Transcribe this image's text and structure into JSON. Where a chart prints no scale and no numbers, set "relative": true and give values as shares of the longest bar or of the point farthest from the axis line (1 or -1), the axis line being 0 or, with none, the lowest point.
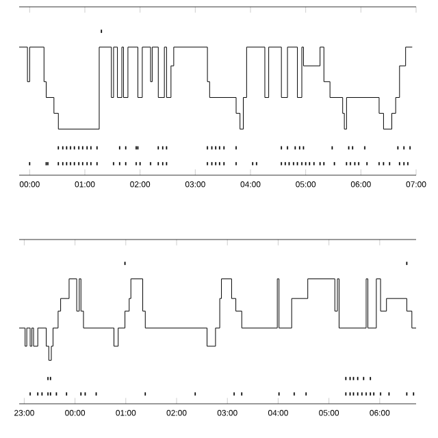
{
  "chart_data": [
    {
      "type": "step",
      "relative": true,
      "xlim": [
        -0.19,
        7.0
      ],
      "xticks": [
        {
          "value": 0,
          "label": "00:00"
        },
        {
          "value": 1,
          "label": "01:00"
        },
        {
          "value": 2,
          "label": "02:00"
        },
        {
          "value": 3,
          "label": "03:00"
        },
        {
          "value": 4,
          "label": "04:00"
        },
        {
          "value": 5,
          "label": "05:00"
        },
        {
          "value": 6,
          "label": "06:00"
        },
        {
          "value": 7,
          "label": "07:00"
        }
      ],
      "series": [
        {
          "color": "#000000",
          "x": [
            -0.19,
            -0.04,
            0,
            0.26,
            0.3,
            0.44,
            0.52,
            1.26,
            1.48,
            1.52,
            1.59,
            1.67,
            1.7,
            1.78,
            1.96,
            2.04,
            2.19,
            2.22,
            2.33,
            2.44,
            2.48,
            2.56,
            2.61,
            3.22,
            3.26,
            3.74,
            3.81,
            3.87,
            3.93,
            4.26,
            4.33,
            4.56,
            4.67,
            4.85,
            4.93,
            4.96,
            5.26,
            5.33,
            5.44,
            5.67,
            5.7,
            5.74,
            6.33,
            6.41,
            6.56,
            6.63,
            6.7,
            6.81,
            6.93
          ],
          "values": [
            0.89,
            0.65,
            0.89,
            0.65,
            0.54,
            0.43,
            0.32,
            0.89,
            0.54,
            0.89,
            0.54,
            0.89,
            0.54,
            0.89,
            0.54,
            0.89,
            0.65,
            0.89,
            0.54,
            0.89,
            0.54,
            0.76,
            0.89,
            0.65,
            0.54,
            0.43,
            0.32,
            0.54,
            0.89,
            0.54,
            0.89,
            0.54,
            0.89,
            0.54,
            0.89,
            0.76,
            0.89,
            0.65,
            0.54,
            0.43,
            0.32,
            0.54,
            0.43,
            0.32,
            0.43,
            0.54,
            0.76,
            0.89,
            0.89
          ]
        },
        {
          "type": "scatter",
          "color": "#000000",
          "x": [
            1.3
          ],
          "values": [
            1
          ]
        },
        {
          "type": "scatter",
          "color": "#000000",
          "x": [
            0.52,
            0.6,
            0.67,
            0.74,
            0.81,
            0.89,
            0.96,
            1.04,
            1.11,
            1.22,
            1.63,
            1.74,
            1.93,
            1.96,
            2.33,
            2.41,
            2.48,
            3.22,
            3.3,
            3.37,
            3.44,
            3.52,
            3.74,
            4.56,
            4.67,
            4.81,
            4.89,
            4.96,
            5.48,
            5.78,
            5.85,
            6.07,
            6.67,
            6.78,
            6.89
          ],
          "values": [
            0.19,
            0.19,
            0.19,
            0.19,
            0.19,
            0.19,
            0.19,
            0.19,
            0.19,
            0.19,
            0.19,
            0.19,
            0.19,
            0.19,
            0.19,
            0.19,
            0.19,
            0.19,
            0.19,
            0.19,
            0.19,
            0.19,
            0.19,
            0.19,
            0.19,
            0.19,
            0.19,
            0.19,
            0.19,
            0.19,
            0.19,
            0.19,
            0.19,
            0.19,
            0.19
          ]
        },
        {
          "type": "scatter",
          "color": "#000000",
          "x": [
            0,
            0.3,
            0.33,
            0.52,
            0.6,
            0.67,
            0.74,
            0.81,
            0.89,
            0.96,
            1.04,
            1.11,
            1.22,
            1.52,
            1.63,
            1.74,
            1.93,
            2.0,
            2.19,
            2.33,
            2.41,
            2.48,
            3.22,
            3.3,
            3.37,
            3.44,
            3.52,
            3.74,
            4.04,
            4.11,
            4.56,
            4.63,
            4.7,
            4.78,
            4.85,
            4.93,
            5.0,
            5.07,
            5.15,
            5.26,
            5.33,
            5.52,
            5.74,
            5.81,
            5.89,
            5.96,
            6.11,
            6.33,
            6.41,
            6.52,
            6.7,
            6.78,
            6.85
          ],
          "values": [
            0.08,
            0.08,
            0.08,
            0.08,
            0.08,
            0.08,
            0.08,
            0.08,
            0.08,
            0.08,
            0.08,
            0.08,
            0.08,
            0.08,
            0.08,
            0.08,
            0.08,
            0.08,
            0.08,
            0.08,
            0.08,
            0.08,
            0.08,
            0.08,
            0.08,
            0.08,
            0.08,
            0.08,
            0.08,
            0.08,
            0.08,
            0.08,
            0.08,
            0.08,
            0.08,
            0.08,
            0.08,
            0.08,
            0.08,
            0.08,
            0.08,
            0.08,
            0.08,
            0.08,
            0.08,
            0.08,
            0.08,
            0.08,
            0.08,
            0.08,
            0.08,
            0.08,
            0.08
          ]
        }
      ]
    },
    {
      "type": "step",
      "relative": true,
      "xlim": [
        "2000-01-01T22:54",
        "2000-01-02T06:43"
      ],
      "xticks": [
        {
          "value": "2000-01-01T23:00",
          "label": "23:00"
        },
        {
          "value": "2000-01-02T00:00",
          "label": "00:00"
        },
        {
          "value": "2000-01-02T01:00",
          "label": "01:00"
        },
        {
          "value": "2000-01-02T02:00",
          "label": "02:00"
        },
        {
          "value": "2000-01-02T03:00",
          "label": "03:00"
        },
        {
          "value": "2000-01-02T04:00",
          "label": "04:00"
        },
        {
          "value": "2000-01-02T05:00",
          "label": "05:00"
        },
        {
          "value": "2000-01-02T06:00",
          "label": "06:00"
        }
      ],
      "series": [
        {
          "color": "#000000",
          "x": [
            "2000-01-01T22:54",
            "2000-01-01T23:01",
            "2000-01-01T23:03",
            "2000-01-01T23:07",
            "2000-01-01T23:09",
            "2000-01-01T23:11",
            "2000-01-01T23:16",
            "2000-01-01T23:26",
            "2000-01-01T23:29",
            "2000-01-01T23:32",
            "2000-01-01T23:34",
            "2000-01-01T23:40",
            "2000-01-01T23:43",
            "2000-01-01T23:53",
            "2000-01-02T00:02",
            "2000-01-02T00:05",
            "2000-01-02T00:07",
            "2000-01-02T00:10",
            "2000-01-02T00:46",
            "2000-01-02T00:51",
            "2000-01-02T00:59",
            "2000-01-02T01:04",
            "2000-01-02T01:06",
            "2000-01-02T01:20",
            "2000-01-02T01:23",
            "2000-01-02T02:36",
            "2000-01-02T02:46",
            "2000-01-02T02:51",
            "2000-01-02T02:53",
            "2000-01-02T03:05",
            "2000-01-02T03:10",
            "2000-01-02T03:17",
            "2000-01-02T03:59",
            "2000-01-02T04:01",
            "2000-01-02T04:16",
            "2000-01-02T04:35",
            "2000-01-02T05:07",
            "2000-01-02T05:10",
            "2000-01-02T05:12",
            "2000-01-02T05:44",
            "2000-01-02T05:46",
            "2000-01-02T05:56",
            "2000-01-02T06:01",
            "2000-01-02T06:08",
            "2000-01-02T06:32",
            "2000-01-02T06:38",
            "2000-01-02T06:43"
          ],
          "values": [
            0.54,
            0.41,
            0.54,
            0.41,
            0.54,
            0.41,
            0.54,
            0.41,
            0.31,
            0.41,
            0.54,
            0.66,
            0.75,
            0.89,
            0.66,
            0.89,
            0.66,
            0.54,
            0.41,
            0.54,
            0.66,
            0.75,
            0.89,
            0.66,
            0.54,
            0.41,
            0.54,
            0.75,
            0.89,
            0.75,
            0.66,
            0.54,
            0.89,
            0.54,
            0.75,
            0.89,
            0.66,
            0.89,
            0.54,
            0.89,
            0.54,
            0.89,
            0.66,
            0.75,
            0.66,
            0.54,
            0.54
          ]
        },
        {
          "type": "scatter",
          "color": "#000000",
          "x": [
            "2000-01-02T00:59",
            "2000-01-02T06:32"
          ],
          "values": [
            1,
            1
          ]
        },
        {
          "type": "scatter",
          "color": "#000000",
          "x": [
            "2000-01-01T23:28",
            "2000-01-01T23:31",
            "2000-01-02T05:20",
            "2000-01-02T05:25",
            "2000-01-02T05:29",
            "2000-01-02T05:34",
            "2000-01-02T05:41",
            "2000-01-02T05:49"
          ],
          "values": [
            0.18,
            0.18,
            0.18,
            0.18,
            0.18,
            0.18,
            0.18,
            0.18
          ]
        },
        {
          "type": "scatter",
          "color": "#000000",
          "x": [
            "2000-01-01T23:07",
            "2000-01-01T23:16",
            "2000-01-01T23:21",
            "2000-01-01T23:28",
            "2000-01-01T23:31",
            "2000-01-01T23:38",
            "2000-01-01T23:50",
            "2000-01-02T00:07",
            "2000-01-02T00:12",
            "2000-01-02T00:25",
            "2000-01-02T01:23",
            "2000-01-02T02:22",
            "2000-01-02T03:08",
            "2000-01-02T03:17",
            "2000-01-02T04:01",
            "2000-01-02T04:19",
            "2000-01-02T04:33",
            "2000-01-02T05:20",
            "2000-01-02T05:25",
            "2000-01-02T05:29",
            "2000-01-02T05:34",
            "2000-01-02T05:39",
            "2000-01-02T05:44",
            "2000-01-02T05:49",
            "2000-01-02T05:53",
            "2000-01-02T06:01",
            "2000-01-02T06:11",
            "2000-01-02T06:32",
            "2000-01-02T06:40"
          ],
          "values": [
            0.07,
            0.07,
            0.07,
            0.07,
            0.07,
            0.07,
            0.07,
            0.07,
            0.07,
            0.07,
            0.07,
            0.07,
            0.07,
            0.07,
            0.07,
            0.07,
            0.07,
            0.07,
            0.07,
            0.07,
            0.07,
            0.07,
            0.07,
            0.07,
            0.07,
            0.07,
            0.07,
            0.07,
            0.07
          ]
        }
      ]
    }
  ]
}
